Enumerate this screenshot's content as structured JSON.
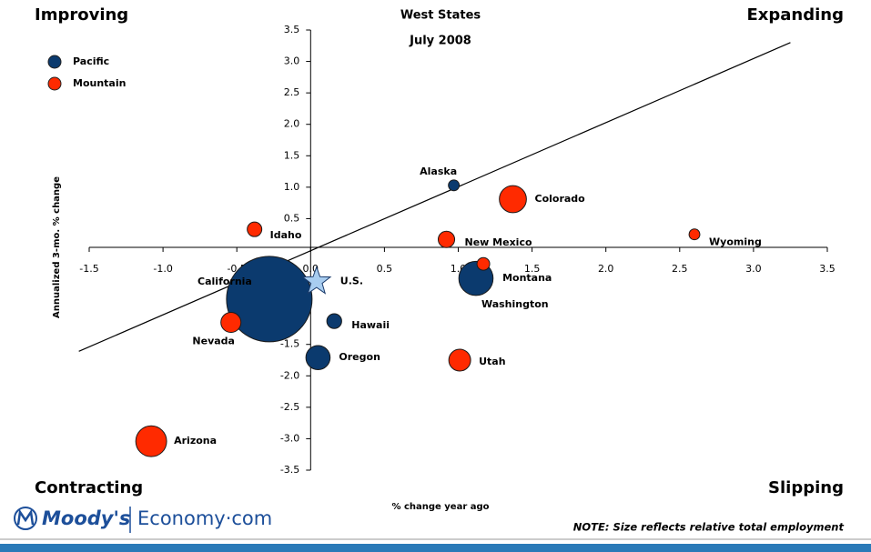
{
  "chart_data": {
    "type": "bubble",
    "title": "West States",
    "subtitle": "July 2008",
    "xlabel": "% change year ago",
    "ylabel": "Annualized 3-mo. % change",
    "quadrants": {
      "top_left": "Improving",
      "top_right": "Expanding",
      "bottom_left": "Contracting",
      "bottom_right": "Slipping"
    },
    "note": "NOTE: Size reflects relative total employment",
    "brand": {
      "name": "Moody's",
      "site": "Economy·com"
    },
    "xlim": [
      -1.5,
      3.5
    ],
    "ylim": [
      -3.5,
      3.5
    ],
    "xticks": [
      -1.5,
      {
        "value": -1,
        "label": "-1.0"
      },
      -0.5,
      {
        "value": 0,
        "label": "0.0"
      },
      0.5,
      {
        "value": 1,
        "label": "1.0"
      },
      1.5,
      {
        "value": 2,
        "label": "2.0"
      },
      2.5,
      {
        "value": 3,
        "label": "3.0"
      },
      3.5
    ],
    "yticks": [
      -3.5,
      {
        "value": -3,
        "label": "-3.0"
      },
      -2.5,
      {
        "value": -2,
        "label": "-2.0"
      },
      -1.5,
      {
        "value": -1,
        "label": "-1.0"
      },
      -0.5,
      0.5,
      {
        "value": 1,
        "label": "1.0"
      },
      1.5,
      {
        "value": 2,
        "label": "2.0"
      },
      2.5,
      {
        "value": 3,
        "label": "3.0"
      },
      3.5
    ],
    "legend": "top-left",
    "series": [
      {
        "name": "Pacific",
        "color": "#0b3a6e",
        "labels": [
          "California",
          "Washington",
          "Oregon",
          "Hawaii",
          "Alaska"
        ],
        "x": [
          -0.28,
          1.12,
          0.05,
          0.16,
          0.97
        ],
        "values": [
          -0.78,
          -0.45,
          -1.71,
          -1.13,
          1.03
        ],
        "size": [
          100,
          16,
          8,
          3,
          1.6
        ]
      },
      {
        "name": "Mountain",
        "color": "#ff2a00",
        "labels": [
          "Arizona",
          "Colorado",
          "Utah",
          "Nevada",
          "New Mexico",
          "Idaho",
          "Montana",
          "Wyoming"
        ],
        "x": [
          -1.08,
          1.37,
          1.01,
          -0.54,
          0.92,
          -0.38,
          1.17,
          2.6
        ],
        "values": [
          -3.04,
          0.81,
          -1.75,
          -1.15,
          0.17,
          0.33,
          -0.22,
          0.25
        ],
        "size": [
          13,
          10,
          6.5,
          5.5,
          3.7,
          2.9,
          2.2,
          1.6
        ]
      }
    ],
    "benchmark": {
      "label": "U.S.",
      "x": 0.04,
      "y": -0.5,
      "color": "#a8cdf0"
    },
    "trend_line": {
      "x": [
        -1.57,
        3.25
      ],
      "y": [
        -1.61,
        3.3
      ]
    }
  }
}
